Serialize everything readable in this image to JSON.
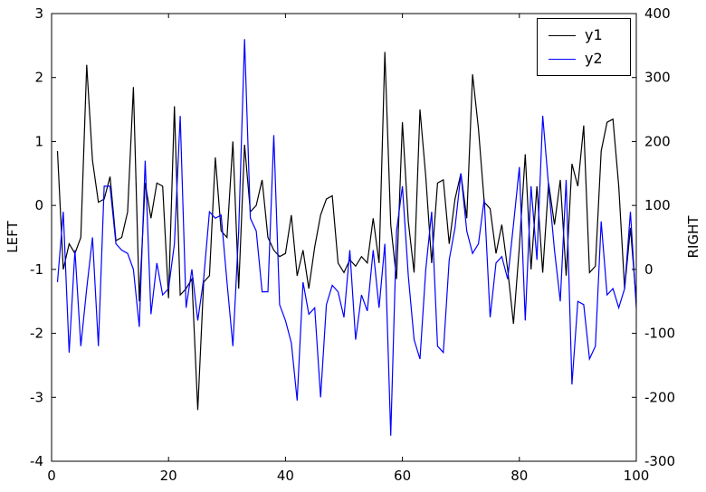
{
  "chart_data": {
    "type": "line",
    "title": "",
    "xlabel": "",
    "grid": false,
    "x": [
      1,
      2,
      3,
      4,
      5,
      6,
      7,
      8,
      9,
      10,
      11,
      12,
      13,
      14,
      15,
      16,
      17,
      18,
      19,
      20,
      21,
      22,
      23,
      24,
      25,
      26,
      27,
      28,
      29,
      30,
      31,
      32,
      33,
      34,
      35,
      36,
      37,
      38,
      39,
      40,
      41,
      42,
      43,
      44,
      45,
      46,
      47,
      48,
      49,
      50,
      51,
      52,
      53,
      54,
      55,
      56,
      57,
      58,
      59,
      60,
      61,
      62,
      63,
      64,
      65,
      66,
      67,
      68,
      69,
      70,
      71,
      72,
      73,
      74,
      75,
      76,
      77,
      78,
      79,
      80,
      81,
      82,
      83,
      84,
      85,
      86,
      87,
      88,
      89,
      90,
      91,
      92,
      93,
      94,
      95,
      96,
      97,
      98,
      99,
      100
    ],
    "series": [
      {
        "name": "y1",
        "axis": "left",
        "color": "#000000",
        "values": [
          0.85,
          -1.0,
          -0.6,
          -0.75,
          -0.5,
          2.2,
          0.7,
          0.05,
          0.1,
          0.45,
          -0.55,
          -0.5,
          -0.1,
          1.85,
          -1.5,
          0.35,
          -0.2,
          0.35,
          0.3,
          -1.45,
          1.55,
          -1.4,
          -1.3,
          -1.15,
          -3.2,
          -1.2,
          -1.1,
          0.75,
          -0.4,
          -0.5,
          1.0,
          -1.3,
          0.95,
          -0.1,
          0.0,
          0.4,
          -0.5,
          -0.7,
          -0.8,
          -0.75,
          -0.15,
          -1.1,
          -0.7,
          -1.3,
          -0.65,
          -0.15,
          0.1,
          0.15,
          -0.9,
          -1.05,
          -0.85,
          -0.95,
          -0.8,
          -0.9,
          -0.2,
          -0.9,
          2.4,
          -0.3,
          -1.15,
          1.3,
          -0.25,
          -1.05,
          1.5,
          0.45,
          -0.9,
          0.35,
          0.4,
          -0.6,
          0.1,
          0.5,
          -0.2,
          2.05,
          1.2,
          0.05,
          -0.05,
          -0.75,
          -0.3,
          -1.0,
          -1.85,
          -0.65,
          0.8,
          -1.0,
          0.3,
          -1.05,
          0.35,
          -0.3,
          0.4,
          -1.1,
          0.65,
          0.3,
          1.25,
          -1.05,
          -0.95,
          0.85,
          1.3,
          1.35,
          0.3,
          -1.3,
          -0.35,
          -1.5
        ]
      },
      {
        "name": "y2",
        "axis": "right",
        "color": "#0000ff",
        "values": [
          -20,
          90,
          -130,
          30,
          -120,
          -30,
          50,
          -120,
          130,
          130,
          40,
          30,
          25,
          0,
          -90,
          170,
          -70,
          10,
          -40,
          -30,
          40,
          240,
          -60,
          0,
          -80,
          -15,
          90,
          80,
          85,
          -20,
          -120,
          60,
          360,
          80,
          60,
          -35,
          -35,
          210,
          -55,
          -80,
          -115,
          -205,
          -20,
          -70,
          -60,
          -200,
          -55,
          -25,
          -35,
          -75,
          30,
          -110,
          -40,
          -65,
          30,
          -60,
          40,
          -260,
          60,
          130,
          -10,
          -110,
          -140,
          0,
          90,
          -120,
          -130,
          15,
          65,
          150,
          60,
          25,
          40,
          110,
          -75,
          10,
          20,
          -15,
          70,
          160,
          -80,
          130,
          15,
          240,
          130,
          30,
          -50,
          140,
          -180,
          -50,
          -55,
          -140,
          -120,
          75,
          -40,
          -30,
          -60,
          -30,
          90,
          -60
        ]
      }
    ],
    "x_axis": {
      "label": "",
      "range": [
        0,
        100
      ],
      "ticks": [
        0,
        20,
        40,
        60,
        80,
        100
      ]
    },
    "y_left_axis": {
      "label": "LEFT",
      "range": [
        -4,
        3
      ],
      "ticks": [
        3,
        2,
        1,
        0,
        -1,
        -2,
        -3,
        -4
      ]
    },
    "y_right_axis": {
      "label": "RIGHT",
      "range": [
        -300,
        400
      ],
      "ticks": [
        400,
        300,
        200,
        100,
        0,
        -100,
        -200,
        -300
      ]
    },
    "legend": {
      "position": "upper right",
      "entries": [
        "y1",
        "y2"
      ]
    }
  },
  "colors": {
    "background": "#ffffff",
    "axis": "#000000",
    "y1_line": "#000000",
    "y2_line": "#0000ff"
  }
}
